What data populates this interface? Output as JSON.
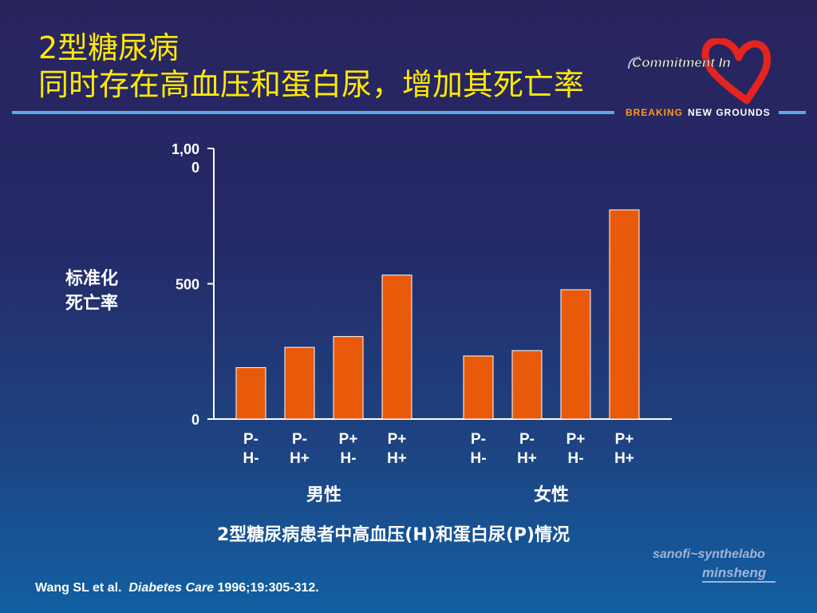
{
  "slide": {
    "title_line1": "2型糖尿病",
    "title_line2": "同时存在高血压和蛋白尿，增加其死亡率",
    "logo_text": "Commitment In",
    "tagline_part1": "BREAKING",
    "tagline_part2": "NEW GROUNDS",
    "company_line1": "sanofi~synthelabo",
    "company_line2": "minsheng",
    "caption": "2型糖尿病患者中高血压(H)和蛋白尿(P)情况",
    "citation_authors": "Wang SL et al.",
    "citation_journal": "Diabetes Care",
    "citation_ref": "1996;19:305-312."
  },
  "chart_data": {
    "type": "bar",
    "title": "",
    "ylabel_lines": [
      "标准化",
      "死亡率"
    ],
    "xlabel": "",
    "ylim": [
      0,
      1000
    ],
    "yticks": [
      {
        "value": 0,
        "label_lines": [
          "0"
        ]
      },
      {
        "value": 500,
        "label_lines": [
          "500"
        ]
      },
      {
        "value": 1000,
        "label_lines": [
          "1,00",
          "0"
        ]
      }
    ],
    "groups": [
      {
        "name": "男性",
        "bars": [
          {
            "label_lines": [
              "P-",
              "H-"
            ],
            "value": 190
          },
          {
            "label_lines": [
              "P-",
              "H+"
            ],
            "value": 265
          },
          {
            "label_lines": [
              "P+",
              "H-"
            ],
            "value": 305
          },
          {
            "label_lines": [
              "P+",
              "H+"
            ],
            "value": 532
          }
        ]
      },
      {
        "name": "女性",
        "bars": [
          {
            "label_lines": [
              "P-",
              "H-"
            ],
            "value": 233
          },
          {
            "label_lines": [
              "P-",
              "H+"
            ],
            "value": 253
          },
          {
            "label_lines": [
              "P+",
              "H-"
            ],
            "value": 478
          },
          {
            "label_lines": [
              "P+",
              "H+"
            ],
            "value": 773
          }
        ]
      }
    ],
    "colors": {
      "bar_fill": "#e85a0a",
      "bar_stroke": "#ffffff",
      "axis": "#ffffff",
      "text": "#ffffff"
    },
    "grid": false,
    "legend": "none"
  }
}
